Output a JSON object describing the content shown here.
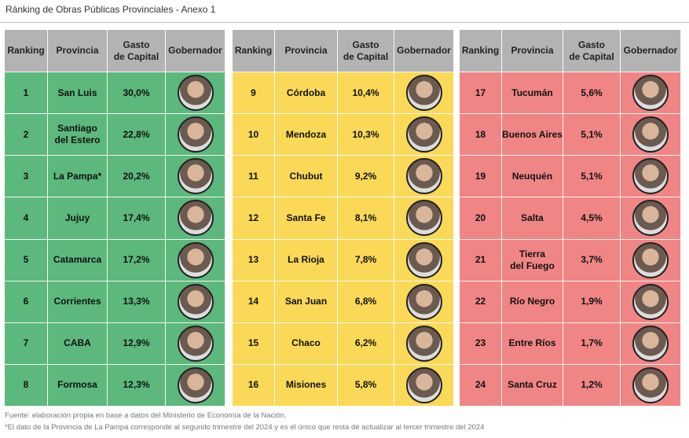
{
  "header": {
    "title": "Ránking de Obras Públicas Provinciales - Anexo 1"
  },
  "columns": [
    "Ranking",
    "Provincia",
    "Gasto\nde Capital",
    "Gobernador"
  ],
  "tables": [
    {
      "rows": [
        [
          1,
          "San Luis",
          "30,0%"
        ],
        [
          2,
          "Santiago\ndel Estero",
          "22,8%"
        ],
        [
          3,
          "La Pampa*",
          "20,2%"
        ],
        [
          4,
          "Jujuy",
          "17,4%"
        ],
        [
          5,
          "Catamarca",
          "17,2%"
        ],
        [
          6,
          "Corrientes",
          "13,3%"
        ],
        [
          7,
          "CABA",
          "12,9%"
        ],
        [
          8,
          "Formosa",
          "12,3%"
        ]
      ]
    },
    {
      "rows": [
        [
          9,
          "Córdoba",
          "10,4%"
        ],
        [
          10,
          "Mendoza",
          "10,3%"
        ],
        [
          11,
          "Chubut",
          "9,2%"
        ],
        [
          12,
          "Santa Fe",
          "8,1%"
        ],
        [
          13,
          "La Rioja",
          "7,8%"
        ],
        [
          14,
          "San Juan",
          "6,8%"
        ],
        [
          15,
          "Chaco",
          "6,2%"
        ],
        [
          16,
          "Misiones",
          "5,8%"
        ]
      ]
    },
    {
      "rows": [
        [
          17,
          "Tucumán",
          "5,6%"
        ],
        [
          18,
          "Buenos Aires",
          "5,1%"
        ],
        [
          19,
          "Neuquén",
          "5,1%"
        ],
        [
          20,
          "Salta",
          "4,5%"
        ],
        [
          21,
          "Tierra\ndel Fuego",
          "3,7%"
        ],
        [
          22,
          "Río Negro",
          "1,9%"
        ],
        [
          23,
          "Entre Ríos",
          "1,7%"
        ],
        [
          24,
          "Santa Cruz",
          "1,2%"
        ]
      ]
    }
  ],
  "footer": {
    "source": "Fuente: elaboración propia en base a datos del Ministerio de Economía de la Nación.",
    "note": "*El dato de la Provincia de La Pampa corresponde al segundo trimestre del 2024 y es el único que resta de actualizar al tercer trimestre del 2024"
  }
}
